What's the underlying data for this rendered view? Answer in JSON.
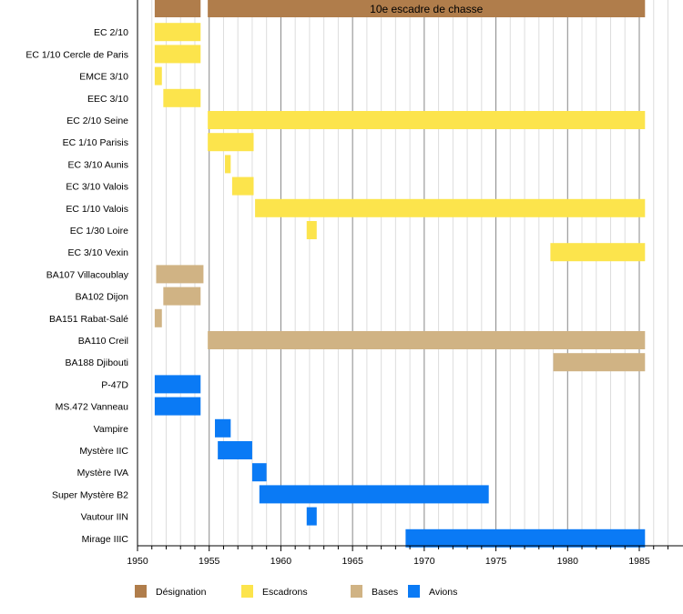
{
  "chart_data": {
    "type": "timeline",
    "title": "",
    "xlim": [
      1950,
      1988
    ],
    "x_ticks": [
      1950,
      1955,
      1960,
      1965,
      1970,
      1975,
      1980,
      1985
    ],
    "grid": "yearly minor, 5-year major",
    "colors": {
      "Désignation": "#b07d4b",
      "Escadrons": "#fce44c",
      "Bases": "#d0b384",
      "Avions": "#0a7af5"
    },
    "legend": {
      "placement": "bottom",
      "entries": [
        "Désignation",
        "Escadrons",
        "Bases",
        "Avions"
      ]
    },
    "rows": [
      {
        "label": "",
        "category": "Désignation",
        "bars": [
          [
            1951.2,
            1954.4,
            ""
          ],
          [
            1954.9,
            1985.4,
            "10e escadre de chasse"
          ]
        ]
      },
      {
        "label": "EC 2/10",
        "category": "Escadrons",
        "bars": [
          [
            1951.2,
            1954.4
          ]
        ]
      },
      {
        "label": "EC 1/10 Cercle de Paris",
        "category": "Escadrons",
        "bars": [
          [
            1951.2,
            1954.4
          ]
        ]
      },
      {
        "label": "EMCE 3/10",
        "category": "Escadrons",
        "bars": [
          [
            1951.2,
            1951.7
          ]
        ]
      },
      {
        "label": "EEC 3/10",
        "category": "Escadrons",
        "bars": [
          [
            1951.8,
            1954.4
          ]
        ]
      },
      {
        "label": "EC 2/10 Seine",
        "category": "Escadrons",
        "bars": [
          [
            1954.9,
            1985.4
          ]
        ]
      },
      {
        "label": "EC 1/10 Parisis",
        "category": "Escadrons",
        "bars": [
          [
            1954.9,
            1958.1
          ]
        ]
      },
      {
        "label": "EC 3/10 Aunis",
        "category": "Escadrons",
        "bars": [
          [
            1956.1,
            1956.5
          ]
        ]
      },
      {
        "label": "EC 3/10 Valois",
        "category": "Escadrons",
        "bars": [
          [
            1956.6,
            1958.1
          ]
        ]
      },
      {
        "label": "EC 1/10 Valois",
        "category": "Escadrons",
        "bars": [
          [
            1958.2,
            1985.4
          ]
        ]
      },
      {
        "label": "EC 1/30 Loire",
        "category": "Escadrons",
        "bars": [
          [
            1961.8,
            1962.5
          ]
        ]
      },
      {
        "label": "EC 3/10 Vexin",
        "category": "Escadrons",
        "bars": [
          [
            1978.8,
            1985.4
          ]
        ]
      },
      {
        "label": "BA107 Villacoublay",
        "category": "Bases",
        "bars": [
          [
            1951.3,
            1954.6
          ]
        ]
      },
      {
        "label": "BA102 Dijon",
        "category": "Bases",
        "bars": [
          [
            1951.8,
            1954.4
          ]
        ]
      },
      {
        "label": "BA151 Rabat-Salé",
        "category": "Bases",
        "bars": [
          [
            1951.2,
            1951.7
          ]
        ]
      },
      {
        "label": "BA110 Creil",
        "category": "Bases",
        "bars": [
          [
            1954.9,
            1985.4
          ]
        ]
      },
      {
        "label": "BA188 Djibouti",
        "category": "Bases",
        "bars": [
          [
            1979.0,
            1985.4
          ]
        ]
      },
      {
        "label": "P-47D",
        "category": "Avions",
        "bars": [
          [
            1951.2,
            1954.4
          ]
        ]
      },
      {
        "label": "MS.472 Vanneau",
        "category": "Avions",
        "bars": [
          [
            1951.2,
            1954.4
          ]
        ]
      },
      {
        "label": "Vampire",
        "category": "Avions",
        "bars": [
          [
            1955.4,
            1956.5
          ]
        ]
      },
      {
        "label": "Mystère IIC",
        "category": "Avions",
        "bars": [
          [
            1955.6,
            1958.0
          ]
        ]
      },
      {
        "label": "Mystère IVA",
        "category": "Avions",
        "bars": [
          [
            1958.0,
            1959.0
          ]
        ]
      },
      {
        "label": "Super Mystère B2",
        "category": "Avions",
        "bars": [
          [
            1958.5,
            1974.5
          ]
        ]
      },
      {
        "label": "Vautour IIN",
        "category": "Avions",
        "bars": [
          [
            1961.8,
            1962.5
          ]
        ]
      },
      {
        "label": "Mirage IIIC",
        "category": "Avions",
        "bars": [
          [
            1968.7,
            1985.4
          ]
        ]
      }
    ]
  }
}
